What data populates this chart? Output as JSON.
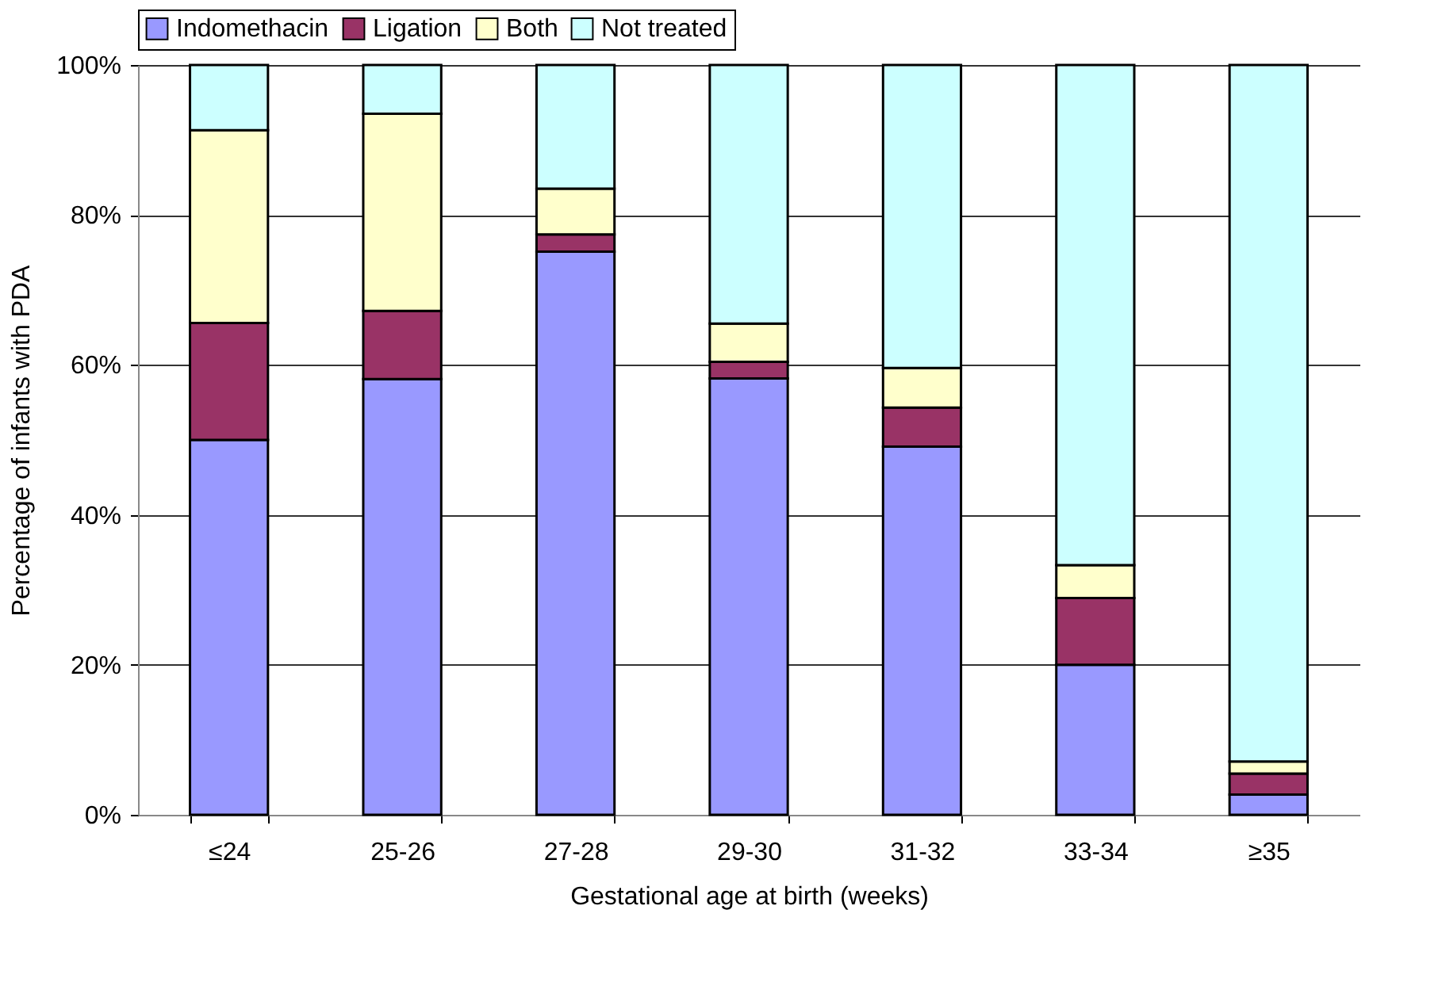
{
  "chart_data": {
    "type": "bar",
    "stacked": true,
    "xlabel": "Gestational age at birth (weeks)",
    "ylabel": "Percentage of infants with PDA",
    "categories": [
      "≤24",
      "25-26",
      "27-28",
      "29-30",
      "31-32",
      "33-34",
      "≥35"
    ],
    "series": [
      {
        "name": "Indomethacin",
        "color": "#9999ff",
        "values": [
          50.0,
          58.1,
          75.1,
          58.2,
          49.1,
          20.0,
          2.7
        ]
      },
      {
        "name": "Ligation",
        "color": "#993366",
        "values": [
          15.6,
          9.1,
          2.3,
          2.2,
          5.2,
          8.9,
          2.8
        ]
      },
      {
        "name": "Both",
        "color": "#ffffcc",
        "values": [
          25.7,
          26.3,
          6.1,
          5.1,
          5.3,
          4.4,
          1.6
        ]
      },
      {
        "name": "Not treated",
        "color": "#ccffff",
        "values": [
          8.7,
          6.5,
          16.5,
          34.5,
          40.4,
          66.7,
          92.9
        ]
      }
    ],
    "ylim": [
      0,
      100
    ],
    "yticks": [
      {
        "value": 0,
        "label": "0%"
      },
      {
        "value": 20,
        "label": "20%"
      },
      {
        "value": 40,
        "label": "40%"
      },
      {
        "value": 60,
        "label": "60%"
      },
      {
        "value": 80,
        "label": "80%"
      },
      {
        "value": 100,
        "label": "100%"
      }
    ],
    "grid": "y",
    "legend": "top"
  }
}
